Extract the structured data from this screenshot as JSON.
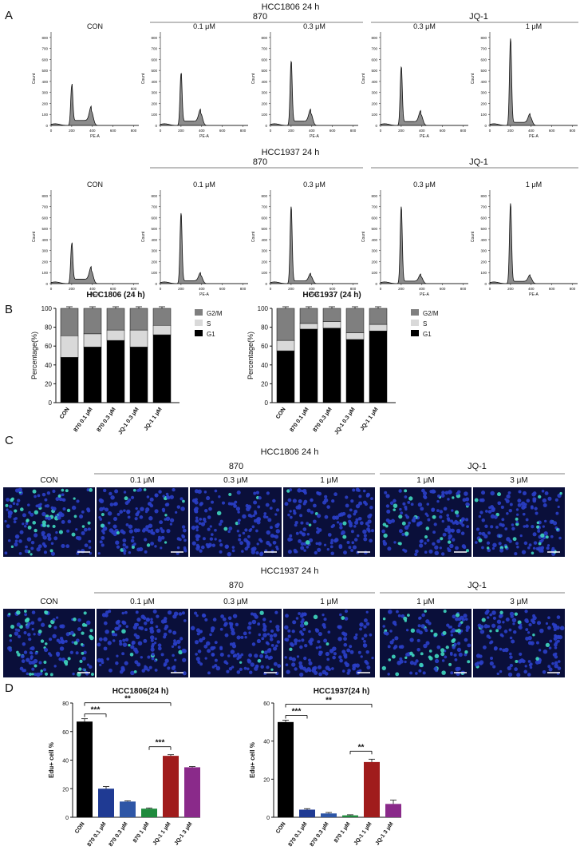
{
  "panel_labels": [
    "A",
    "B",
    "C",
    "D"
  ],
  "flow": {
    "titles": [
      "HCC1806   24 h",
      "HCC1937   24 h"
    ],
    "group_870": "870",
    "group_jq1": "JQ-1",
    "columns": [
      "CON",
      "0.1 μM",
      "0.3 μM",
      "0.3 μM",
      "1 μM"
    ],
    "xlabel": "PE-A",
    "ylabel": "Count",
    "xticks": [
      "0",
      "200",
      "400",
      "600",
      "800"
    ],
    "yticks": [
      "0",
      "100",
      "200",
      "300",
      "400",
      "500",
      "600",
      "700",
      "800"
    ]
  },
  "micro": {
    "titles": [
      "HCC1806   24 h",
      "HCC1937   24 h"
    ],
    "group_870": "870",
    "group_jq1": "JQ-1",
    "columns": [
      "CON",
      "0.1 μM",
      "0.3 μM",
      "1 μM",
      "1 μM",
      "3 μM"
    ]
  },
  "legend_b": [
    "G2/M",
    "S",
    "G1"
  ],
  "colors": {
    "flow_fill": "#8c8c8c",
    "g2m": "#7f7f7f",
    "s": "#d9d9d9",
    "g1": "#000000",
    "bar_d": [
      "#000000",
      "#1f3a93",
      "#2e56a6",
      "#1e8a3c",
      "#a01c1c",
      "#8a2a8a"
    ],
    "micro_bg": "#0a0f3a",
    "nuclei": "#2a3fc9",
    "edu": "#3fd8c0"
  },
  "chart_data": [
    {
      "type": "bar",
      "title": "HCC1806 (24 h)",
      "stacked": true,
      "categories": [
        "CON",
        "870 0.1 μM",
        "870 0.3 μM",
        "JQ-1 0.3 μM",
        "JQ-1 1 μM"
      ],
      "series": [
        {
          "name": "G1",
          "values": [
            48,
            59,
            66,
            59,
            72
          ]
        },
        {
          "name": "S",
          "values": [
            23,
            14,
            11,
            18,
            10
          ]
        },
        {
          "name": "G2/M",
          "values": [
            29,
            27,
            23,
            23,
            18
          ]
        }
      ],
      "ylabel": "Percentage(%)",
      "yticks": [
        "0",
        "20",
        "40",
        "60",
        "80",
        "100"
      ],
      "ylim": [
        0,
        100
      ]
    },
    {
      "type": "bar",
      "title": "HCC1937 (24 h)",
      "stacked": true,
      "categories": [
        "CON",
        "870 0.1 μM",
        "870 0.3 μM",
        "JQ-1 0.3 μM",
        "JQ-1 1 μM"
      ],
      "series": [
        {
          "name": "G1",
          "values": [
            55,
            78,
            79,
            67,
            76
          ]
        },
        {
          "name": "S",
          "values": [
            11,
            6,
            7,
            7,
            7
          ]
        },
        {
          "name": "G2/M",
          "values": [
            34,
            16,
            14,
            26,
            17
          ]
        }
      ],
      "ylabel": "Percentage(%)",
      "yticks": [
        "0",
        "20",
        "40",
        "60",
        "80",
        "100"
      ],
      "ylim": [
        0,
        100
      ]
    },
    {
      "type": "bar",
      "title": "HCC1806(24 h)",
      "categories": [
        "CON",
        "870 0.1 μM",
        "870 0.3 μM",
        "870 1 μM",
        "JQ-1 1 μM",
        "JQ-1 3 μM"
      ],
      "values": [
        67,
        20,
        11,
        6,
        43,
        35
      ],
      "errors": [
        2,
        1.5,
        0.5,
        0.5,
        0.8,
        0.5
      ],
      "ylabel": "Edu+ cell %",
      "yticks": [
        "0",
        "20",
        "40",
        "60",
        "80"
      ],
      "ylim": [
        0,
        80
      ],
      "annotations": [
        "***",
        "**",
        "***"
      ]
    },
    {
      "type": "bar",
      "title": "HCC1937(24 h)",
      "categories": [
        "CON",
        "870 0.1 μM",
        "870 0.3 μM",
        "870 1 μM",
        "JQ-1 1 μM",
        "JQ-1 3 μM"
      ],
      "values": [
        50,
        4,
        2,
        1,
        29,
        7
      ],
      "errors": [
        1,
        0.5,
        0.5,
        0.3,
        1.5,
        2
      ],
      "ylabel": "Edu+ cell %",
      "yticks": [
        "0",
        "20",
        "40",
        "60"
      ],
      "ylim": [
        0,
        60
      ],
      "annotations": [
        "***",
        "**",
        "**"
      ]
    }
  ]
}
